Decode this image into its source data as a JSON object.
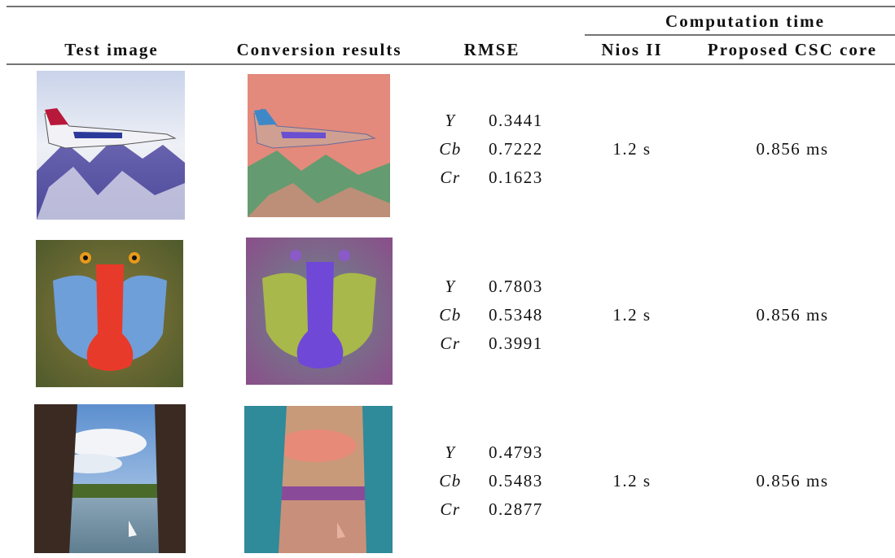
{
  "table": {
    "header": {
      "group": "Computation time",
      "columns": [
        "Test image",
        "Conversion results",
        "RMSE",
        "Nios II",
        "Proposed CSC core"
      ]
    },
    "rows": [
      {
        "rmse": [
          {
            "channel": "Y",
            "value": "0.3441"
          },
          {
            "channel": "Cb",
            "value": "0.7222"
          },
          {
            "channel": "Cr",
            "value": "0.1623"
          }
        ],
        "nios": "1.2 s",
        "csc": "0.856 ms"
      },
      {
        "rmse": [
          {
            "channel": "Y",
            "value": "0.7803"
          },
          {
            "channel": "Cb",
            "value": "0.5348"
          },
          {
            "channel": "Cr",
            "value": "0.3991"
          }
        ],
        "nios": "1.2 s",
        "csc": "0.856 ms"
      },
      {
        "rmse": [
          {
            "channel": "Y",
            "value": "0.4793"
          },
          {
            "channel": "Cb",
            "value": "0.5483"
          },
          {
            "channel": "Cr",
            "value": "0.2877"
          }
        ],
        "nios": "1.2 s",
        "csc": "0.856 ms"
      }
    ]
  }
}
